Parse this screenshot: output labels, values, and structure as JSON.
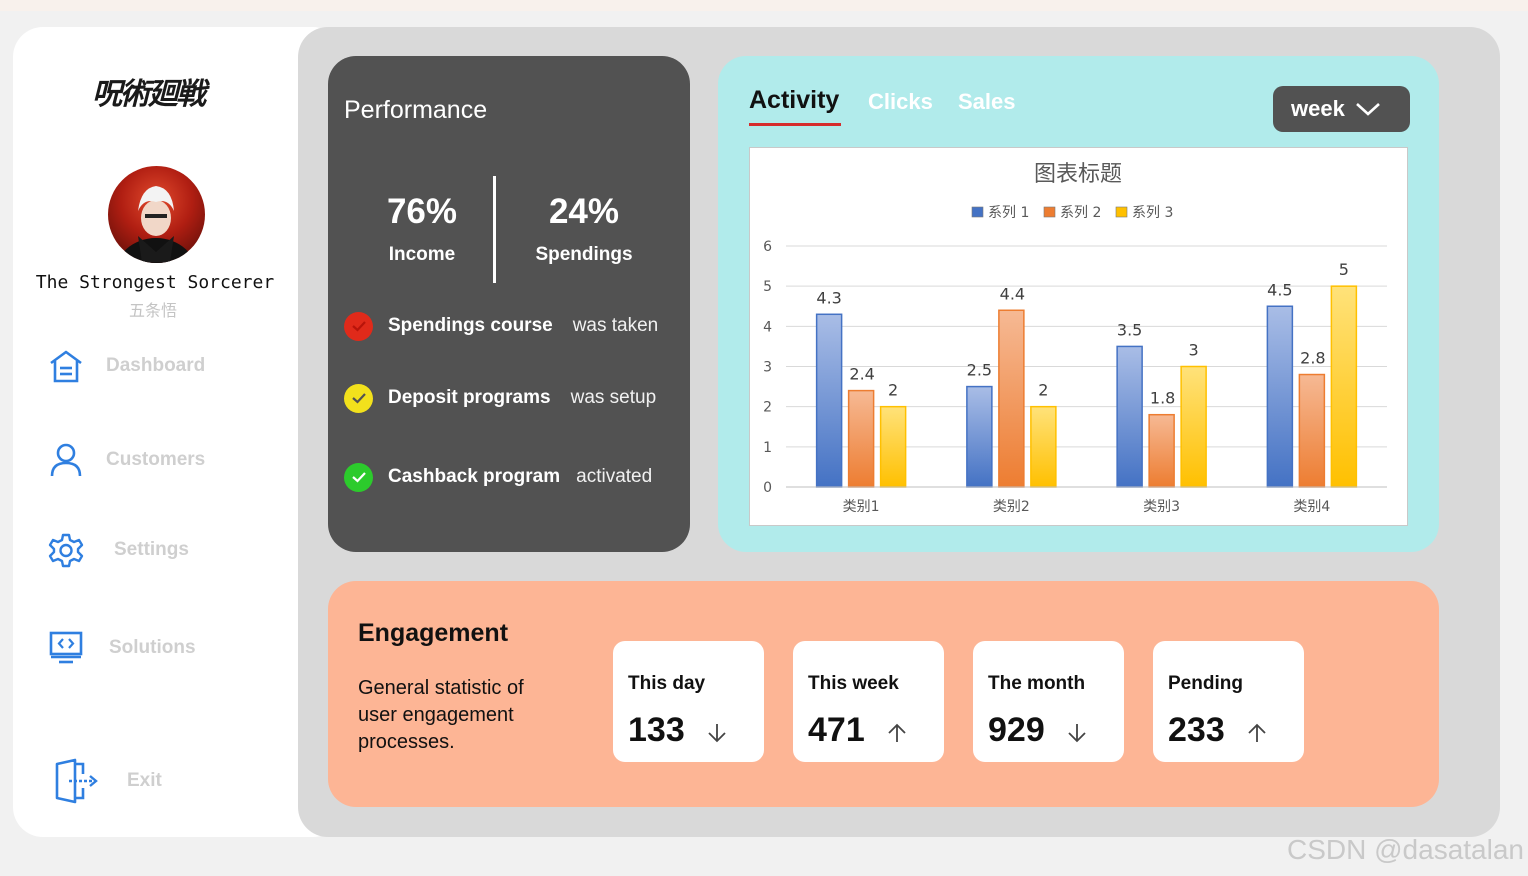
{
  "sidebar": {
    "logo_text": "呪術廻戦",
    "user_name": "The Strongest Sorcerer",
    "user_subtitle": "五条悟",
    "items": [
      {
        "label": "Dashboard",
        "icon": "home-icon"
      },
      {
        "label": "Customers",
        "icon": "user-icon"
      },
      {
        "label": "Settings",
        "icon": "gear-icon"
      },
      {
        "label": "Solutions",
        "icon": "monitor-code-icon"
      }
    ],
    "exit_label": "Exit"
  },
  "performance": {
    "title": "Performance",
    "income_value": "76%",
    "income_label": "Income",
    "spendings_value": "24%",
    "spendings_label": "Spendings",
    "rows": [
      {
        "title": "Spendings course",
        "status": "was taken",
        "color": "#e02a1a"
      },
      {
        "title": "Deposit programs",
        "status": "was setup",
        "color": "#f2e11c"
      },
      {
        "title": "Cashback program",
        "status": "activated",
        "color": "#2ccb2c"
      }
    ]
  },
  "activity": {
    "tabs": [
      "Activity",
      "Clicks",
      "Sales"
    ],
    "period": "week"
  },
  "chart_data": {
    "type": "bar",
    "title": "图表标题",
    "categories": [
      "类别1",
      "类别2",
      "类别3",
      "类别4"
    ],
    "series": [
      {
        "name": "系列 1",
        "values": [
          4.3,
          2.5,
          3.5,
          4.5
        ],
        "color": "#4472c4"
      },
      {
        "name": "系列 2",
        "values": [
          2.4,
          4.4,
          1.8,
          2.8
        ],
        "color": "#ed7d31"
      },
      {
        "name": "系列 3",
        "values": [
          2,
          2,
          3,
          5
        ],
        "color": "#ffc000"
      }
    ],
    "ylim": [
      0,
      6
    ],
    "yticks": [
      "0",
      "1",
      "2",
      "3",
      "4",
      "5",
      "6"
    ],
    "legend": "top",
    "grid": true
  },
  "engagement": {
    "title": "Engagement",
    "description": "General statistic of user engagement processes.",
    "cards": [
      {
        "label": "This day",
        "value": "133",
        "trend": "down"
      },
      {
        "label": "This week",
        "value": "471",
        "trend": "up"
      },
      {
        "label": "The month",
        "value": "929",
        "trend": "down"
      },
      {
        "label": "Pending",
        "value": "233",
        "trend": "up"
      }
    ]
  },
  "watermark": "CSDN @dasatalan"
}
